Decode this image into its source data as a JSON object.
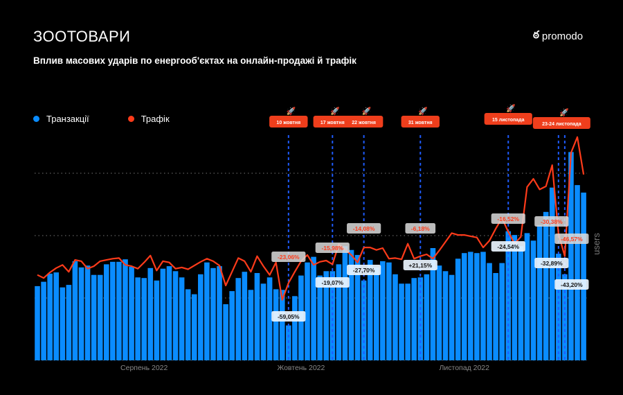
{
  "header": {
    "title": "ЗООТОВАРИ",
    "subtitle": "Вплив масових ударів по енергооб'єктах на онлайн-продажі й трафік",
    "logo": "promodo"
  },
  "colors": {
    "transactions": "#0a8cff",
    "traffic": "#ff3b1a",
    "event_line": "#1e5bff",
    "event_badge": "#ef3e1c"
  },
  "chart_data": {
    "type": "bar+line",
    "title": "Вплив масових ударів по енергооб'єктах на онлайн-продажі й трафік",
    "legend": [
      {
        "name": "Транзакції",
        "color": "#0a8cff"
      },
      {
        "name": "Трафік",
        "color": "#ff3b1a"
      }
    ],
    "legend_position": "top-left",
    "ylabel": "users",
    "ylim": [
      0,
      3.6
    ],
    "grid_values": [
      1,
      2,
      3
    ],
    "x_ticks": [
      {
        "label": "Серпень 2022",
        "index": 17
      },
      {
        "label": "Жовтень 2022",
        "index": 42
      },
      {
        "label": "Листопад 2022",
        "index": 68
      }
    ],
    "series": [
      {
        "name": "Транзакції",
        "type": "bar",
        "values": [
          1.19,
          1.26,
          1.39,
          1.41,
          1.17,
          1.21,
          1.59,
          1.49,
          1.52,
          1.37,
          1.37,
          1.54,
          1.58,
          1.58,
          1.62,
          1.5,
          1.33,
          1.32,
          1.48,
          1.28,
          1.47,
          1.51,
          1.43,
          1.33,
          1.14,
          1.06,
          1.38,
          1.57,
          1.48,
          1.51,
          0.9,
          1.11,
          1.32,
          1.42,
          1.13,
          1.4,
          1.23,
          1.33,
          1.14,
          1.13,
          0.56,
          1.03,
          1.36,
          1.57,
          1.66,
          1.36,
          1.43,
          1.43,
          1.54,
          1.83,
          1.77,
          1.69,
          1.28,
          1.61,
          1.49,
          1.59,
          1.57,
          1.38,
          1.23,
          1.23,
          1.32,
          1.33,
          1.38,
          1.8,
          1.52,
          1.43,
          1.37,
          1.63,
          1.72,
          1.74,
          1.72,
          1.74,
          1.56,
          1.4,
          1.56,
          2.07,
          2.01,
          1.83,
          2.04,
          1.92,
          2.17,
          2.38,
          2.77,
          1.71,
          1.38,
          3.34,
          2.81,
          2.69
        ]
      },
      {
        "name": "Трафік",
        "type": "line",
        "values": [
          1.37,
          1.32,
          1.41,
          1.48,
          1.53,
          1.42,
          1.61,
          1.59,
          1.47,
          1.51,
          1.59,
          1.61,
          1.63,
          1.64,
          1.53,
          1.51,
          1.47,
          1.57,
          1.68,
          1.44,
          1.59,
          1.57,
          1.47,
          1.49,
          1.46,
          1.52,
          1.58,
          1.63,
          1.59,
          1.52,
          1.2,
          1.42,
          1.64,
          1.59,
          1.42,
          1.67,
          1.51,
          1.37,
          1.57,
          0.97,
          1.24,
          1.42,
          1.59,
          1.69,
          1.53,
          1.58,
          1.6,
          1.54,
          1.86,
          1.78,
          1.69,
          1.57,
          1.81,
          1.81,
          1.77,
          1.8,
          1.63,
          1.64,
          1.62,
          1.87,
          1.63,
          1.67,
          1.7,
          1.63,
          1.76,
          1.9,
          2.04,
          2.01,
          2.01,
          1.99,
          1.97,
          1.81,
          1.92,
          2.11,
          2.28,
          2.06,
          1.87,
          1.98,
          2.78,
          2.91,
          2.74,
          2.79,
          3.13,
          2.03,
          1.67,
          3.33,
          3.58,
          2.98
        ]
      }
    ],
    "events": [
      {
        "label": "10 жовтня",
        "index": [
          40
        ],
        "traffic_change": [
          "-23,06%"
        ],
        "transactions_change": [
          "-59,05%"
        ]
      },
      {
        "label": "17 жовтня",
        "index": [
          47
        ],
        "traffic_change": [
          "-15,98%"
        ],
        "transactions_change": [
          "-19,07%"
        ]
      },
      {
        "label": "22 жовтня",
        "index": [
          52
        ],
        "traffic_change": [
          "-14,08%"
        ],
        "transactions_change": [
          "-27,70%"
        ]
      },
      {
        "label": "31 жовтня",
        "index": [
          61
        ],
        "traffic_change": [
          "-6,18%"
        ],
        "transactions_change": [
          "+21,15%"
        ]
      },
      {
        "label": "15 листопада",
        "index": [
          75
        ],
        "traffic_change": [
          "-16,52%"
        ],
        "transactions_change": [
          "-24,54%"
        ]
      },
      {
        "label": "23-24 листопада",
        "index": [
          83,
          84
        ],
        "traffic_change": [
          "-30,38%",
          "-46,57%"
        ],
        "transactions_change": [
          "-32,89%",
          "-43,20%"
        ]
      }
    ]
  }
}
